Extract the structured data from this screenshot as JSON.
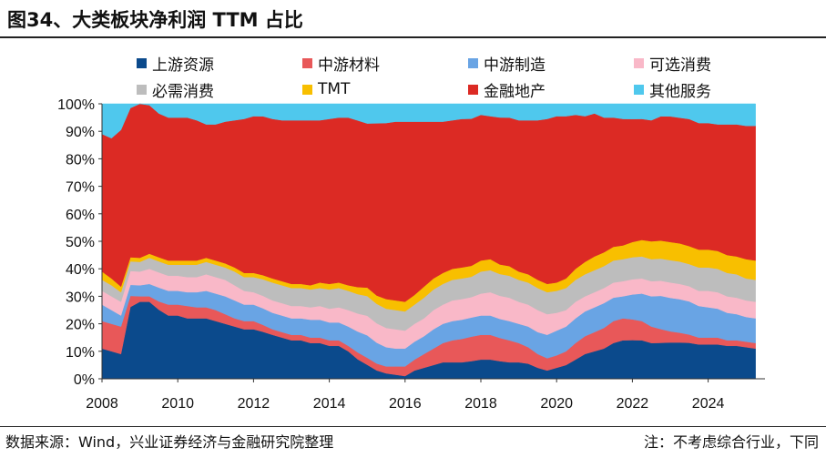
{
  "header": {
    "title": "图34、大类板块净利润 TTM 占比"
  },
  "footer": {
    "source": "数据来源：Wind，兴业证券经济与金融研究院整理",
    "note": "注：不考虑综合行业，下同"
  },
  "chart_data": {
    "type": "area",
    "stacked": true,
    "normalized": true,
    "x": [
      2008.0,
      2008.25,
      2008.5,
      2008.75,
      2009.0,
      2009.25,
      2009.5,
      2009.75,
      2010.0,
      2010.25,
      2010.5,
      2010.75,
      2011.0,
      2011.25,
      2011.5,
      2011.75,
      2012.0,
      2012.25,
      2012.5,
      2012.75,
      2013.0,
      2013.25,
      2013.5,
      2013.75,
      2014.0,
      2014.25,
      2014.5,
      2014.75,
      2015.0,
      2015.25,
      2015.5,
      2015.75,
      2016.0,
      2016.25,
      2016.5,
      2016.75,
      2017.0,
      2017.25,
      2017.5,
      2017.75,
      2018.0,
      2018.25,
      2018.5,
      2018.75,
      2019.0,
      2019.25,
      2019.5,
      2019.75,
      2020.0,
      2020.25,
      2020.5,
      2020.75,
      2021.0,
      2021.25,
      2021.5,
      2021.75,
      2022.0,
      2022.25,
      2022.5,
      2022.75,
      2023.0,
      2023.25,
      2023.5,
      2023.75,
      2024.0,
      2024.25,
      2024.5,
      2024.75,
      2025.0,
      2025.25
    ],
    "xticks": [
      "2008",
      "2010",
      "2012",
      "2014",
      "2016",
      "2018",
      "2020",
      "2022",
      "2024"
    ],
    "xlim": [
      2008,
      2025.5
    ],
    "yticks": [
      "0%",
      "10%",
      "20%",
      "30%",
      "40%",
      "50%",
      "60%",
      "70%",
      "80%",
      "90%",
      "100%"
    ],
    "ylim": [
      0,
      100
    ],
    "legend_position": "top",
    "series": [
      {
        "name": "上游资源",
        "color": "#0b4a8c",
        "values": [
          11,
          10,
          9,
          26,
          28,
          28,
          25,
          23,
          23,
          22,
          22,
          22,
          21,
          20,
          19,
          18,
          18,
          17,
          16,
          15,
          14,
          14,
          13,
          13,
          12,
          12,
          10,
          7,
          5,
          3,
          2,
          1.5,
          1,
          3,
          4,
          5,
          6,
          6,
          6,
          6.5,
          7,
          7,
          6.5,
          6,
          6,
          5.5,
          4,
          3,
          4,
          5,
          7,
          9,
          10,
          11,
          13,
          14,
          14,
          14,
          13,
          13,
          13,
          13,
          13,
          12.5,
          12.5,
          12.5,
          12,
          12,
          11.5,
          11
        ]
      },
      {
        "name": "中游材料",
        "color": "#e85859",
        "values": [
          10,
          10,
          10,
          4,
          2,
          2,
          3,
          4,
          4,
          4.5,
          4,
          4,
          4,
          3.5,
          3,
          3,
          3,
          2.5,
          2,
          2,
          2,
          2,
          2,
          2,
          2,
          2,
          2,
          2.5,
          2.5,
          2.5,
          2.5,
          3,
          3.5,
          4,
          5,
          6,
          7,
          8,
          8.5,
          9,
          9,
          9,
          8.5,
          8,
          7,
          6,
          5,
          4.5,
          4.5,
          5,
          6,
          6.5,
          7,
          7.5,
          8,
          8,
          7.5,
          7,
          6,
          5,
          4,
          3.5,
          3,
          2.5,
          2.5,
          2.5,
          2,
          2,
          2,
          2
        ]
      },
      {
        "name": "中游制造",
        "color": "#69a4e4",
        "values": [
          6,
          5,
          4,
          4,
          4,
          4.5,
          5,
          5,
          5,
          5,
          5.5,
          6,
          6,
          6.5,
          6.5,
          6,
          6,
          6,
          6,
          6,
          6,
          6,
          6.5,
          6.5,
          6.5,
          6.5,
          7,
          7.5,
          8,
          7.5,
          7,
          6.5,
          6.5,
          6.5,
          6.5,
          7,
          7,
          7,
          7,
          7,
          7,
          7,
          7,
          7,
          7,
          7.5,
          8,
          8.5,
          9,
          9,
          9,
          9,
          9,
          9,
          8.5,
          8,
          9,
          10,
          11,
          12,
          12,
          12,
          12,
          11.5,
          11,
          10.5,
          10,
          9.5,
          9,
          9
        ]
      },
      {
        "name": "可选消费",
        "color": "#f9b8c8",
        "values": [
          5,
          5,
          5,
          5,
          5,
          5.5,
          5.5,
          5.5,
          5.5,
          5.5,
          5.5,
          6,
          6,
          6,
          5.5,
          5,
          4.5,
          4.5,
          4.5,
          4.5,
          4.5,
          4.5,
          4.5,
          5,
          5,
          5.5,
          6,
          6.5,
          7,
          7,
          7,
          7,
          6.5,
          6.5,
          6.5,
          7,
          7,
          7.5,
          7.5,
          7.5,
          8,
          8.5,
          8.5,
          8.5,
          8,
          8,
          8,
          7.5,
          6.5,
          6,
          6,
          5.5,
          5.5,
          5.5,
          5.5,
          5.5,
          5.5,
          5.5,
          5.5,
          5.5,
          5.5,
          5.5,
          5.5,
          5.5,
          6,
          6,
          6,
          6,
          6,
          6
        ]
      },
      {
        "name": "必需消费",
        "color": "#bdbdbd",
        "values": [
          4,
          4,
          3.5,
          3.5,
          3.5,
          4,
          4,
          4,
          4,
          4.5,
          4.5,
          4.5,
          4.5,
          4.5,
          5,
          5,
          5.5,
          6,
          6.5,
          6.5,
          6.5,
          6.5,
          6.5,
          6.5,
          7,
          7,
          7,
          7,
          7,
          7,
          7,
          7,
          7,
          7,
          7.5,
          7.5,
          7.5,
          7.5,
          7.5,
          7.5,
          8,
          8,
          8,
          8,
          8,
          8,
          8,
          8,
          8,
          8,
          8,
          8,
          8,
          8,
          8,
          8,
          8,
          8,
          8,
          8,
          8,
          8,
          8,
          8.5,
          8.5,
          8.5,
          8.5,
          8.5,
          8,
          8
        ]
      },
      {
        "name": "TMT",
        "color": "#f8bf00",
        "values": [
          3,
          2.5,
          2,
          1.5,
          1.5,
          1.5,
          1.5,
          1.5,
          1.5,
          1.5,
          1.5,
          1.5,
          1.5,
          1.5,
          1.5,
          1.5,
          1.5,
          1.5,
          1.5,
          1.5,
          1.5,
          1.5,
          1.5,
          2,
          2,
          2,
          2,
          2.5,
          3,
          3,
          3.5,
          3.5,
          3.5,
          3.5,
          4,
          4,
          4,
          4,
          4,
          4,
          4,
          4,
          3.5,
          3.5,
          3,
          3,
          3,
          3,
          3,
          3.5,
          4,
          4.5,
          5,
          5,
          5,
          5,
          5.5,
          6,
          6.5,
          6.5,
          6.5,
          6.5,
          6.5,
          6.5,
          6.5,
          6.5,
          6.5,
          6.5,
          7,
          7
        ]
      },
      {
        "name": "金融地产",
        "color": "#dc2a24",
        "values": [
          50,
          51,
          57,
          54,
          56,
          54,
          52,
          52,
          52,
          52,
          51,
          48.5,
          49.5,
          51.5,
          53.5,
          56,
          57,
          57.5,
          58,
          58.5,
          59.5,
          59.5,
          60,
          59,
          60,
          60,
          61,
          60,
          58.5,
          62,
          64,
          65,
          65.5,
          63,
          60,
          57,
          55,
          54,
          54,
          54,
          53,
          52,
          54,
          54,
          55,
          56,
          58,
          60,
          60.5,
          59,
          56,
          53,
          52,
          49,
          47,
          46,
          44.5,
          44,
          44,
          45,
          45,
          45,
          46,
          46,
          46,
          46,
          47.5,
          48,
          48.5,
          49
        ]
      },
      {
        "name": "其他服务",
        "color": "#4fc8ed",
        "values": [
          11,
          12.5,
          9.5,
          1.5,
          0,
          0.5,
          3.5,
          5,
          5,
          5,
          6,
          7.5,
          7.5,
          6.5,
          6,
          5.5,
          4.5,
          4.5,
          5.5,
          6,
          6,
          6,
          6,
          6,
          5.5,
          5,
          5,
          6,
          7,
          7,
          7,
          6.5,
          6.5,
          6.5,
          6.5,
          6.5,
          6.5,
          6,
          5.5,
          5.5,
          4,
          4.5,
          5,
          5,
          6,
          6,
          6,
          5.5,
          4.5,
          4.5,
          4,
          4.5,
          3.5,
          5,
          5,
          5.5,
          5.5,
          5.5,
          6,
          4.5,
          4.5,
          5,
          5.5,
          7,
          7,
          7.5,
          7.5,
          7.5,
          8,
          8
        ]
      }
    ]
  }
}
